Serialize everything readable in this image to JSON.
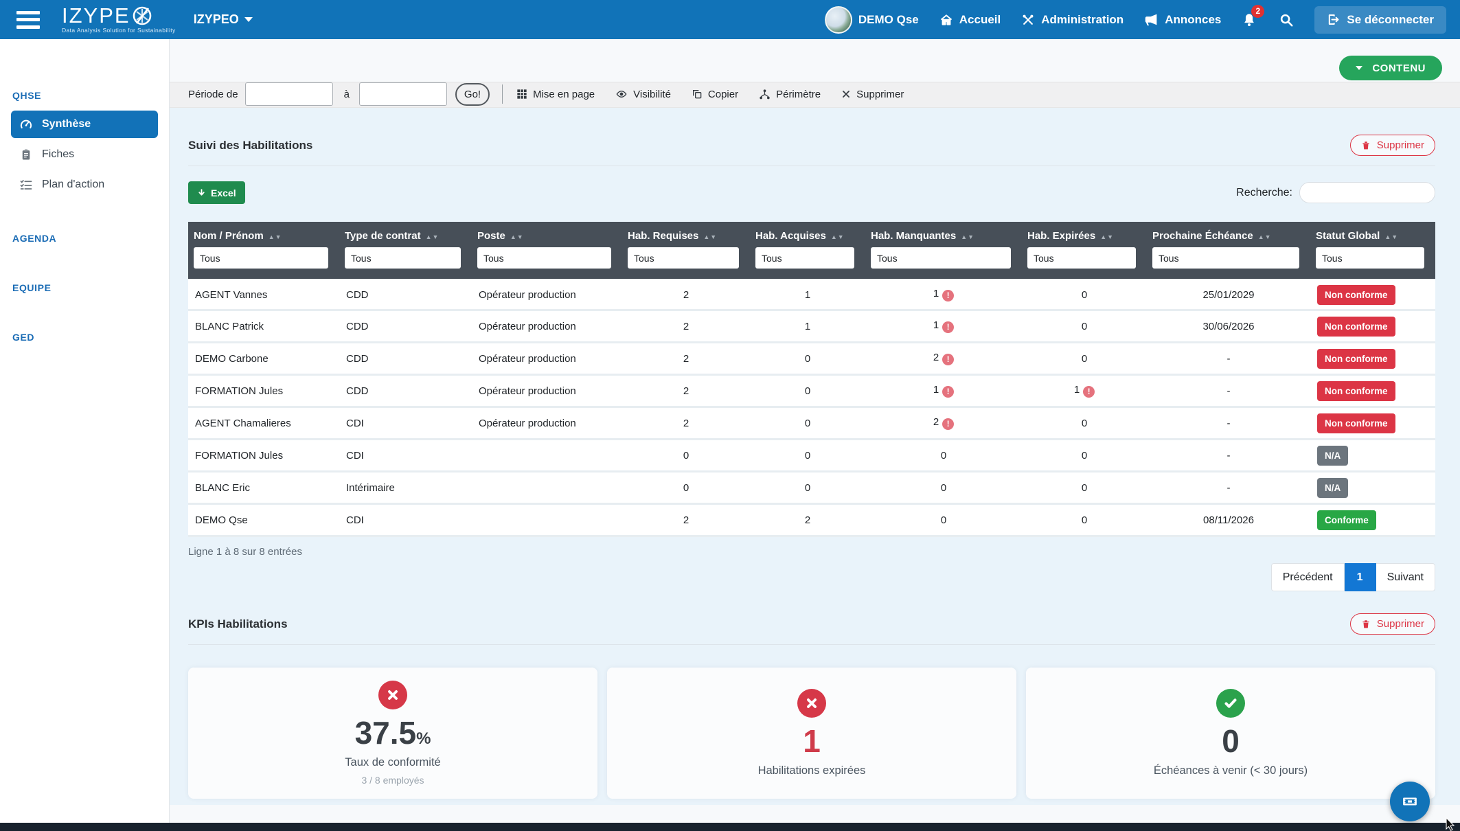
{
  "colors": {
    "danger": "#dc3545",
    "na": "#6c757d",
    "success": "#28a745",
    "brand": "#1173b8",
    "green_btn": "#26a55c"
  },
  "topbar": {
    "brand": "IZYPE",
    "brand_tagline": "Data Analysis Solution for Sustainability",
    "workspace": "IZYPEO",
    "user": "DEMO Qse",
    "nav": [
      {
        "label": "Accueil",
        "icon": "home-icon"
      },
      {
        "label": "Administration",
        "icon": "tools-icon"
      },
      {
        "label": "Annonces",
        "icon": "megaphone-icon"
      }
    ],
    "notifications_count": "2",
    "logout_label": "Se déconnecter"
  },
  "sidebar": {
    "sections": [
      {
        "title": "QHSE"
      },
      {
        "title": "AGENDA"
      },
      {
        "title": "EQUIPE"
      },
      {
        "title": "GED"
      }
    ],
    "qhse_items": [
      {
        "label": "Synthèse"
      },
      {
        "label": "Fiches"
      },
      {
        "label": "Plan d'action"
      }
    ]
  },
  "content_button": "CONTENU",
  "toolbar": {
    "period_label": "Période de",
    "to_label": "à",
    "go_label": "Go!",
    "actions": [
      "Mise en page",
      "Visibilité",
      "Copier",
      "Périmètre",
      "Supprimer"
    ]
  },
  "table_section": {
    "title": "Suivi des Habilitations",
    "delete_label": "Supprimer",
    "excel_label": "Excel",
    "search_label": "Recherche:",
    "filter_value": "Tous",
    "sort_icon": "▲▼",
    "columns": [
      "Nom / Prénom",
      "Type de contrat",
      "Poste",
      "Hab. Requises",
      "Hab. Acquises",
      "Hab. Manquantes",
      "Hab. Expirées",
      "Prochaine Échéance",
      "Statut Global"
    ],
    "rows": [
      {
        "nom": "AGENT Vannes",
        "contrat": "CDD",
        "poste": "Opérateur production",
        "requises": "2",
        "acquises": "1",
        "manquantes": "1",
        "manquantes_alerte": true,
        "expirees": "0",
        "expirees_alerte": false,
        "echeance": "25/01/2029",
        "statut": "Non conforme",
        "statut_type": "danger"
      },
      {
        "nom": "BLANC Patrick",
        "contrat": "CDD",
        "poste": "Opérateur production",
        "requises": "2",
        "acquises": "1",
        "manquantes": "1",
        "manquantes_alerte": true,
        "expirees": "0",
        "expirees_alerte": false,
        "echeance": "30/06/2026",
        "statut": "Non conforme",
        "statut_type": "danger"
      },
      {
        "nom": "DEMO Carbone",
        "contrat": "CDD",
        "poste": "Opérateur production",
        "requises": "2",
        "acquises": "0",
        "manquantes": "2",
        "manquantes_alerte": true,
        "expirees": "0",
        "expirees_alerte": false,
        "echeance": "-",
        "statut": "Non conforme",
        "statut_type": "danger"
      },
      {
        "nom": "FORMATION Jules",
        "contrat": "CDD",
        "poste": "Opérateur production",
        "requises": "2",
        "acquises": "0",
        "manquantes": "1",
        "manquantes_alerte": true,
        "expirees": "1",
        "expirees_alerte": true,
        "echeance": "-",
        "statut": "Non conforme",
        "statut_type": "danger"
      },
      {
        "nom": "AGENT Chamalieres",
        "contrat": "CDI",
        "poste": "Opérateur production",
        "requises": "2",
        "acquises": "0",
        "manquantes": "2",
        "manquantes_alerte": true,
        "expirees": "0",
        "expirees_alerte": false,
        "echeance": "-",
        "statut": "Non conforme",
        "statut_type": "danger"
      },
      {
        "nom": "FORMATION Jules",
        "contrat": "CDI",
        "poste": "",
        "requises": "0",
        "acquises": "0",
        "manquantes": "0",
        "manquantes_alerte": false,
        "expirees": "0",
        "expirees_alerte": false,
        "echeance": "-",
        "statut": "N/A",
        "statut_type": "na"
      },
      {
        "nom": "BLANC Eric",
        "contrat": "Intérimaire",
        "poste": "",
        "requises": "0",
        "acquises": "0",
        "manquantes": "0",
        "manquantes_alerte": false,
        "expirees": "0",
        "expirees_alerte": false,
        "echeance": "-",
        "statut": "N/A",
        "statut_type": "na"
      },
      {
        "nom": "DEMO Qse",
        "contrat": "CDI",
        "poste": "",
        "requises": "2",
        "acquises": "2",
        "manquantes": "0",
        "manquantes_alerte": false,
        "expirees": "0",
        "expirees_alerte": false,
        "echeance": "08/11/2026",
        "statut": "Conforme",
        "statut_type": "success"
      }
    ],
    "footer": "Ligne 1 à 8 sur 8 entrées",
    "pagination": {
      "prev": "Précédent",
      "page": "1",
      "next": "Suivant"
    }
  },
  "kpi_section": {
    "title": "KPIs Habilitations",
    "delete_label": "Supprimer",
    "cards": [
      {
        "icon": "x-circle-icon",
        "value": "37.5",
        "suffix": "%",
        "label": "Taux de conformité",
        "sub": "3 / 8 employés",
        "value_color": "dark"
      },
      {
        "icon": "x-circle-icon",
        "value": "1",
        "suffix": "",
        "label": "Habilitations expirées",
        "sub": "",
        "value_color": "red"
      },
      {
        "icon": "check-circle-icon",
        "value": "0",
        "suffix": "",
        "label": "Échéances à venir (< 30 jours)",
        "sub": "",
        "value_color": "dark"
      }
    ]
  }
}
